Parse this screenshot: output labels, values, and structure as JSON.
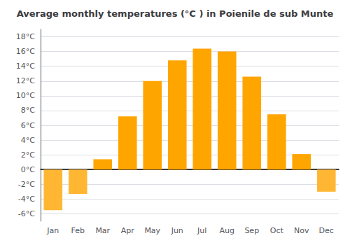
{
  "chart_data": {
    "type": "bar",
    "title": "Average monthly temperatures (°C ) in Poienile de sub Munte",
    "categories": [
      "Jan",
      "Feb",
      "Mar",
      "Apr",
      "May",
      "Jun",
      "Jul",
      "Aug",
      "Sep",
      "Oct",
      "Nov",
      "Dec"
    ],
    "values": [
      -5.5,
      -3.3,
      1.4,
      7.2,
      12.0,
      14.8,
      16.4,
      16.0,
      12.6,
      7.5,
      2.1,
      -3.0
    ],
    "colors": [
      "#FFB733",
      "#FFB733",
      "#FFA500",
      "#FFA500",
      "#FFA500",
      "#FFA500",
      "#FFA500",
      "#FFA500",
      "#FFA500",
      "#FFA500",
      "#FFA500",
      "#FFB733"
    ],
    "ylim": [
      -7,
      19
    ],
    "yticks": [
      {
        "value": -6,
        "label": "-6°C"
      },
      {
        "value": -4,
        "label": "-4°C"
      },
      {
        "value": -2,
        "label": "-2°C"
      },
      {
        "value": 0,
        "label": "0°C"
      },
      {
        "value": 2,
        "label": "2°C"
      },
      {
        "value": 4,
        "label": "4°C"
      },
      {
        "value": 6,
        "label": "6°C"
      },
      {
        "value": 8,
        "label": "8°C"
      },
      {
        "value": 10,
        "label": "10°C"
      },
      {
        "value": 12,
        "label": "12°C"
      },
      {
        "value": 14,
        "label": "14°C"
      },
      {
        "value": 16,
        "label": "16°C"
      },
      {
        "value": 18,
        "label": "18°C"
      }
    ],
    "grid": true
  }
}
